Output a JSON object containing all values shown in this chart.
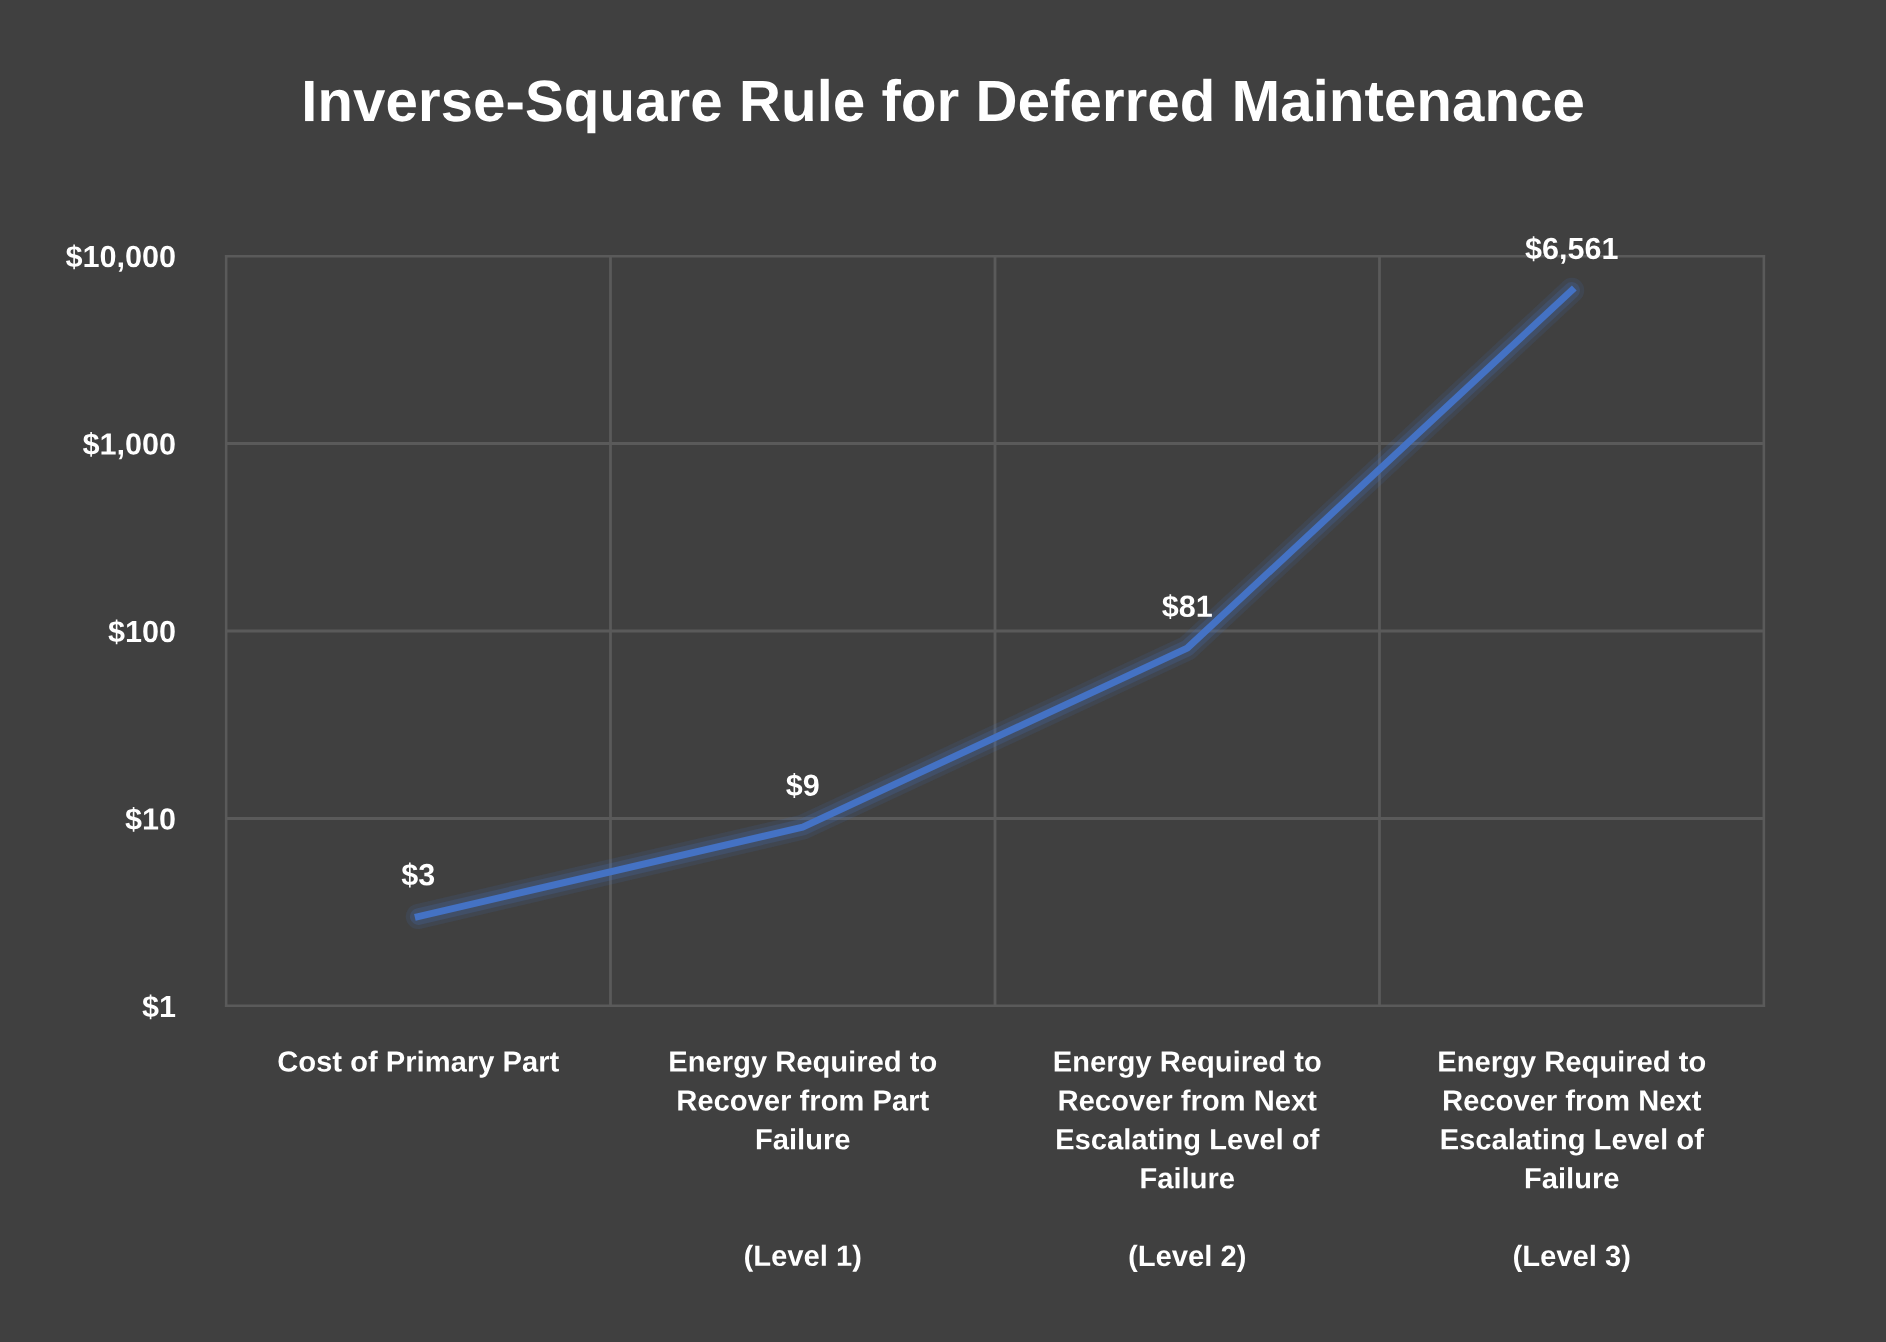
{
  "chart_data": {
    "type": "line",
    "title": "Inverse-Square Rule for Deferred Maintenance",
    "categories": [
      "Cost of Primary Part",
      "Energy Required to\nRecover from Part\nFailure\n\n\n(Level 1)",
      "Energy Required to\nRecover from Next\nEscalating Level of\nFailure\n\n(Level 2)",
      "Energy Required to\nRecover from Next\nEscalating Level of\nFailure\n\n(Level 3)"
    ],
    "series": [
      {
        "color": "#4472c4",
        "values": [
          3,
          9,
          81,
          6561
        ],
        "value_labels": [
          "$3",
          "$9",
          "$81",
          "$6,561"
        ]
      }
    ],
    "log": true,
    "ylim": [
      1,
      10000
    ],
    "yticks": [
      {
        "value": 1,
        "label": "$1"
      },
      {
        "value": 10,
        "label": "$10"
      },
      {
        "value": 100,
        "label": "$100"
      },
      {
        "value": 1000,
        "label": "$1,000"
      },
      {
        "value": 10000,
        "label": "$10,000"
      }
    ],
    "grid": true,
    "marker": "none",
    "line_style": "solid",
    "legend": false
  }
}
